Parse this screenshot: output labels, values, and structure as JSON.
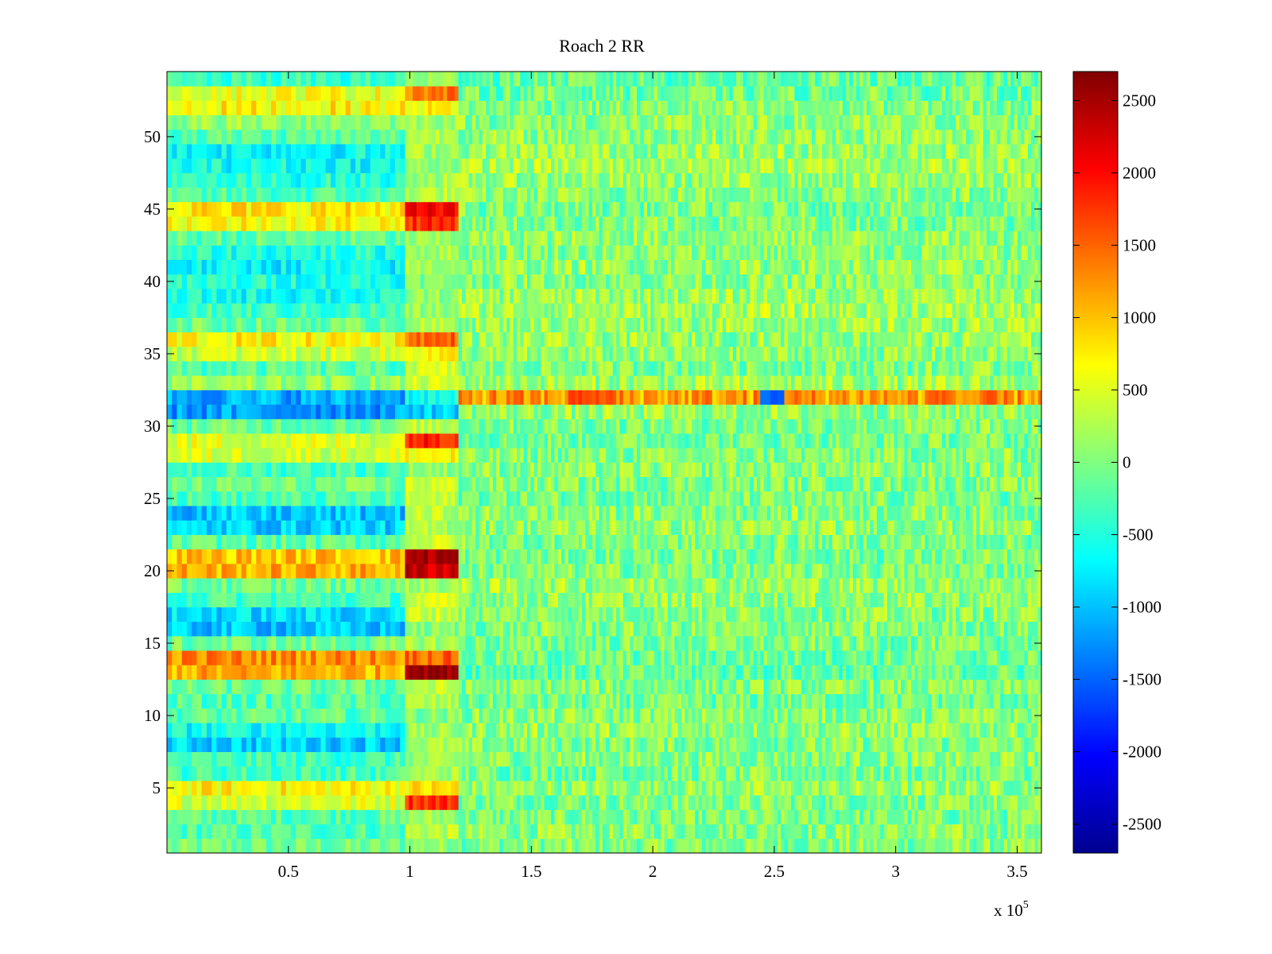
{
  "chart_data": {
    "type": "heatmap",
    "title": "Roach 2 RR",
    "xlabel": "",
    "ylabel": "",
    "x_exponent_label": "x 10",
    "x_exponent_power": "5",
    "xlim": [
      0,
      3.6
    ],
    "ylim": [
      0.5,
      54.5
    ],
    "x_ticks": [
      0.5,
      1,
      1.5,
      2,
      2.5,
      3,
      3.5
    ],
    "x_tick_labels": [
      "0.5",
      "1",
      "1.5",
      "2",
      "2.5",
      "3",
      "3.5"
    ],
    "y_ticks": [
      5,
      10,
      15,
      20,
      25,
      30,
      35,
      40,
      45,
      50
    ],
    "y_tick_labels": [
      "5",
      "10",
      "15",
      "20",
      "25",
      "30",
      "35",
      "40",
      "45",
      "50"
    ],
    "n_rows": 54,
    "segment_boundaries_x": [
      0.98,
      1.2
    ],
    "segments_note": "Segment A: x 0–0.98 (scaled 1e5), Segment B: 0.98–1.2, Segment C: 1.2–3.6",
    "row_means_segment_a": [
      -100,
      -250,
      -200,
      500,
      700,
      -300,
      -350,
      -900,
      -600,
      -200,
      -250,
      -150,
      1100,
      1300,
      -100,
      -1000,
      -850,
      -300,
      -100,
      1100,
      1000,
      -200,
      -900,
      -1000,
      -300,
      -100,
      -300,
      450,
      500,
      -100,
      -1200,
      -1100,
      100,
      -250,
      400,
      700,
      -100,
      -350,
      -600,
      -500,
      -700,
      -500,
      -200,
      700,
      800,
      -300,
      -500,
      -600,
      -650,
      -200,
      100,
      700,
      600,
      -400
    ],
    "row_means_segment_b": [
      100,
      300,
      150,
      1800,
      800,
      200,
      100,
      200,
      100,
      0,
      200,
      300,
      2650,
      1500,
      200,
      0,
      400,
      400,
      200,
      2300,
      2500,
      400,
      200,
      300,
      300,
      400,
      100,
      700,
      1900,
      300,
      -900,
      -600,
      400,
      400,
      700,
      1500,
      200,
      100,
      100,
      0,
      200,
      200,
      100,
      1800,
      2000,
      300,
      200,
      100,
      200,
      300,
      200,
      700,
      1400,
      100
    ],
    "row_means_segment_c": [
      0,
      50,
      -50,
      0,
      100,
      -50,
      50,
      0,
      100,
      50,
      -100,
      0,
      -150,
      -100,
      -50,
      0,
      50,
      100,
      150,
      0,
      -50,
      0,
      100,
      50,
      -50,
      0,
      50,
      0,
      -50,
      0,
      100,
      1200,
      150,
      0,
      50,
      100,
      150,
      200,
      150,
      50,
      100,
      50,
      100,
      0,
      -50,
      50,
      100,
      200,
      150,
      100,
      50,
      0,
      -100,
      -150
    ],
    "row32_hotspots_segment_c": [
      {
        "x": 1.7,
        "value": 1700
      },
      {
        "x": 1.8,
        "value": 1600
      },
      {
        "x": 2.49,
        "value": -1500
      },
      {
        "x": 3.18,
        "value": 1500
      }
    ],
    "colorbar": {
      "colormap": "jet",
      "range": [
        -2700,
        2700
      ],
      "ticks": [
        -2500,
        -2000,
        -1500,
        -1000,
        -500,
        0,
        500,
        1000,
        1500,
        2000,
        2500
      ],
      "tick_labels": [
        "-2500",
        "-2000",
        "-1500",
        "-1000",
        "-500",
        "0",
        "500",
        "1000",
        "1500",
        "2000",
        "2500"
      ]
    },
    "grid": false,
    "legend": "none"
  }
}
